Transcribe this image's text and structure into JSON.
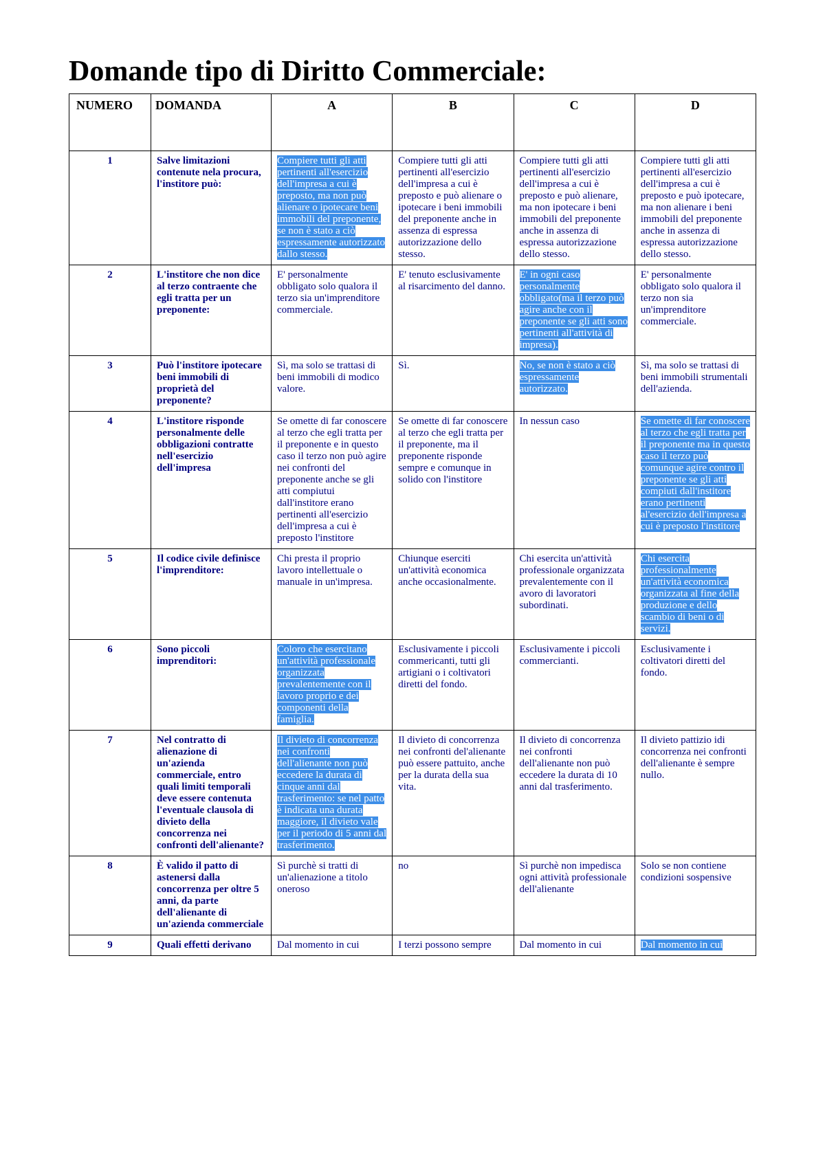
{
  "title": "Domande tipo di Diritto Commerciale:",
  "headers": {
    "numero": "NUMERO",
    "domanda": "DOMANDA",
    "a": "A",
    "b": "B",
    "c": "C",
    "d": "D"
  },
  "highlight_style": {
    "bg": "#3d8ee8",
    "fg": "#ffffff"
  },
  "text_color": "#000080",
  "rows": [
    {
      "n": "1",
      "q": "Salve limitazioni contenute nela procura, l'institore può:",
      "a": "Compiere tutti gli atti pertinenti all'esercizio dell'impresa a cui è preposto, ma non può alienare o ipotecare beni immobili del preponente, se non è stato a ciò espressamente autorizzato dallo stesso.",
      "b": "Compiere tutti gli atti pertinenti all'esercizio dell'impresa a cui è preposto e può alienare o ipotecare i beni immobili del preponente anche in assenza di espressa autorizzazione dello stesso.",
      "c": "Compiere tutti gli atti pertinenti all'esercizio dell'impresa a cui è preposto e può alienare, ma non ipotecare i beni immobili del preponente anche in assenza di espressa autorizzazione dello stesso.",
      "d": "Compiere tutti gli atti pertinenti all'esercizio dell'impresa a cui è preposto e può ipotecare, ma non alienare i beni immobili del preponente anche in assenza di espressa autorizzazione dello stesso.",
      "hl": "a"
    },
    {
      "n": "2",
      "q": "L'institore che non dice al terzo contraente che egli tratta per un preponente:",
      "a": "E' personalmente obbligato solo qualora il terzo sia un'imprenditore commerciale.",
      "b": "E' tenuto esclusivamente al risarcimento del danno.",
      "c": "E' in ogni caso personalmente obbligato(ma il terzo può agire anche con il preponente se gli atti sono pertinenti all'attività di impresa).",
      "d": "E' personalmente obbligato solo qualora il terzo non sia un'imprenditore commerciale.",
      "hl": "c"
    },
    {
      "n": "3",
      "q": "Può l'institore ipotecare beni immobili di proprietà del preponente?",
      "a": "Sì, ma solo se trattasi di beni immobili di modico valore.",
      "b": "Sì.",
      "c": "No, se non è stato a ciò espressamente autorizzato.",
      "d": "Sì, ma solo se trattasi di beni immobili strumentali dell'azienda.",
      "hl": "c"
    },
    {
      "n": "4",
      "q": "L'institore risponde personalmente delle obbligazioni contratte nell'esercizio dell'impresa",
      "a": "Se omette di far conoscere al terzo che egli tratta per il preponente e in questo caso il terzo non può agire nei confronti del preponente anche se gli atti compiutui dall'institore erano pertinenti all'esercizio dell'impresa a cui è preposto l'institore",
      "b": "Se omette di far conoscere al terzo che egli tratta per il preponente, ma il preponente risponde sempre e comunque in solido con l'institore",
      "c": "In nessun caso",
      "d": "Se omette di far conoscere al terzo che egli tratta per il preponente ma in questo caso il terzo può comunque agire contro il preponente se gli atti compiuti dall'institore erano pertinenti al'esercizio dell'impresa a cui è preposto l'institore",
      "hl": "d"
    },
    {
      "n": "5",
      "q": "Il codice civile definisce l'imprenditore:",
      "a": "Chi presta il proprio lavoro intellettuale o manuale in un'impresa.",
      "b": "Chiunque eserciti un'attività economica anche occasionalmente.",
      "c": "Chi esercita un'attività professionale organizzata prevalentemente con il avoro di lavoratori subordinati.",
      "d": "Chi esercita professionalmente un'attività economica organizzata al fine della produzione e dello scambio di beni o di servizi.",
      "hl": "d"
    },
    {
      "n": "6",
      "q": "Sono piccoli imprenditori:",
      "a": "Coloro che esercitano un'attività professionale organizzata prevalentemente con il lavoro proprio e dei componenti della famiglia.",
      "b": "Esclusivamente i piccoli commericanti, tutti gli artigiani o i coltivatori diretti del fondo.",
      "c": "Esclusivamente i piccoli commercianti.",
      "d": "Esclusivamente i coltivatori diretti del fondo.",
      "hl": "a"
    },
    {
      "n": "7",
      "q": "Nel contratto di alienazione di un'azienda commerciale, entro quali limiti temporali deve essere contenuta l'eventuale clausola di divieto della concorrenza nei confronti dell'alienante?",
      "a": "Il divieto di concorrenza nei confronti dell'alienante non può eccedere la durata di cinque anni dal trasferimento: se nel patto è indicata una durata maggiore, il divieto vale per il periodo di 5 anni dal trasferimento.",
      "b": "Il divieto di concorrenza nei confronti del'alienante può essere pattuito, anche per la durata della sua vita.",
      "c": "Il divieto di concorrenza nei confronti dell'alienante non può eccedere la durata di 10 anni dal trasferimento.",
      "d": "Il divieto pattizio idi concorrenza nei confronti dell'alienante è sempre nullo.",
      "hl": "a"
    },
    {
      "n": "8",
      "q": "È valido il patto di astenersi dalla concorrenza per oltre 5 anni, da parte dell'alienante di un'azienda commerciale",
      "a": "Sì purchè si tratti di un'alienazione a titolo oneroso",
      "b": "no",
      "c": "Sì purchè non impedisca ogni attività professionale dell'alienante",
      "d": "Solo se non contiene condizioni sospensive",
      "hl": ""
    },
    {
      "n": "9",
      "q": "Quali effetti derivano",
      "a": "Dal momento in cui",
      "b": "I terzi possono sempre",
      "c": "Dal momento in cui",
      "d": "Dal momento in cui",
      "hl": "d"
    }
  ]
}
